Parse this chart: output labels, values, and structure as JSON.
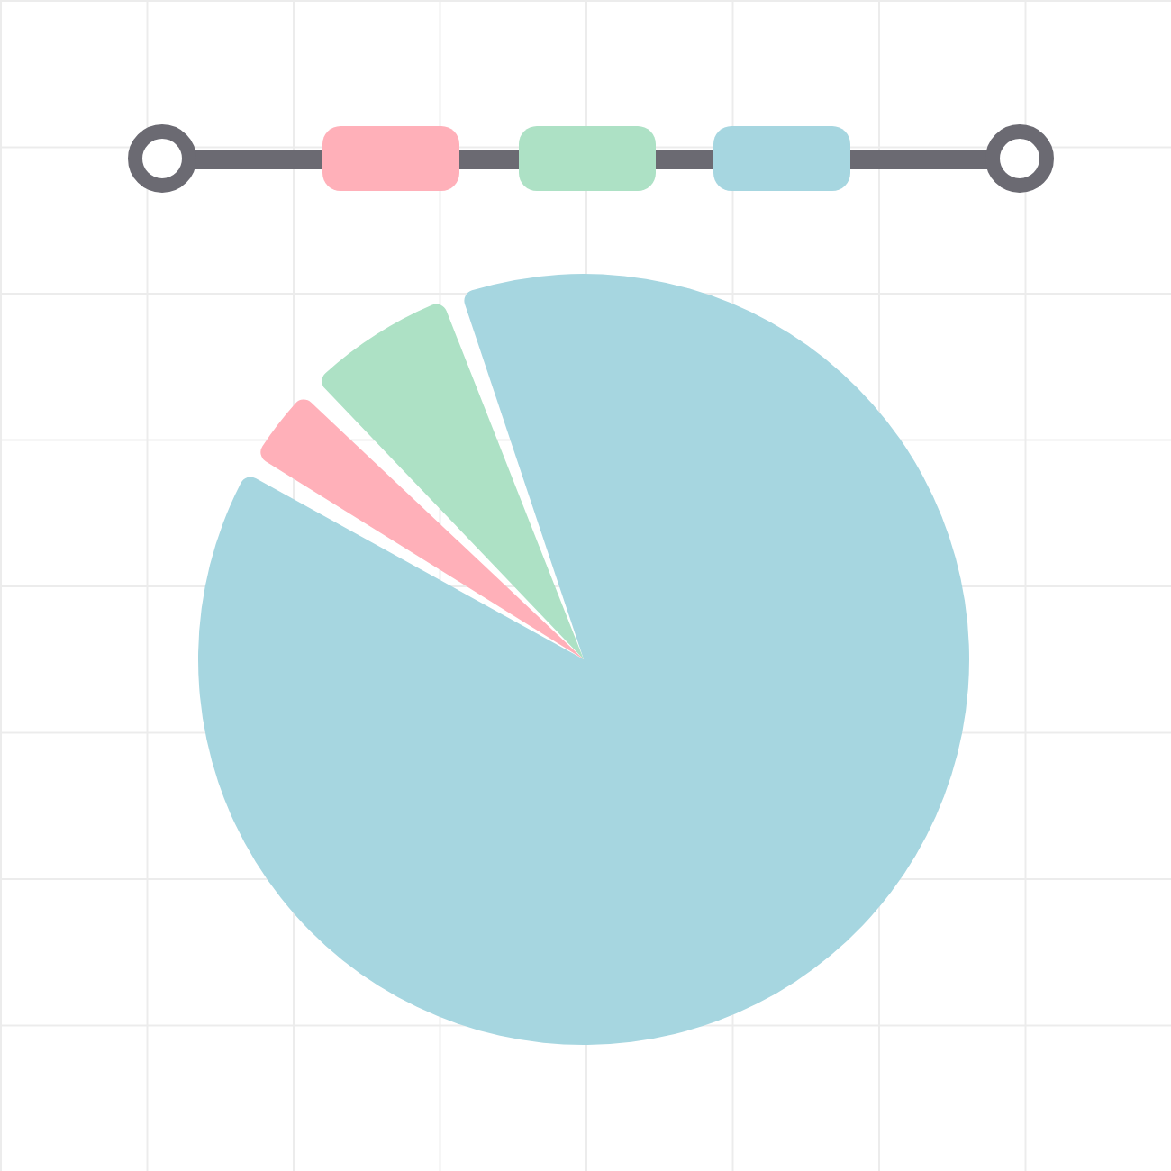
{
  "chart_data": {
    "type": "pie",
    "categories": [
      null,
      null,
      null
    ],
    "values": [
      89,
      4,
      7
    ],
    "colors": [
      "#a6d6e0",
      "#ffb0b9",
      "#ade1c5"
    ]
  }
}
